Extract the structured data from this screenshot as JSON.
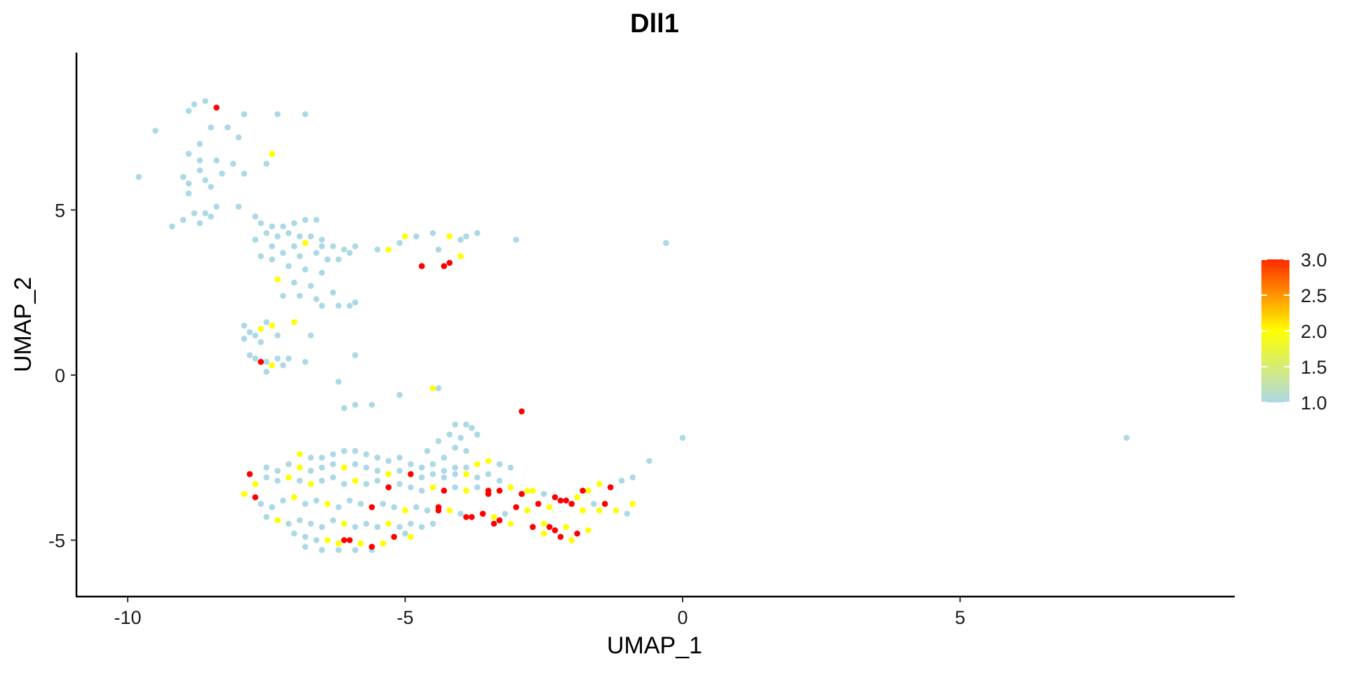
{
  "chart_data": {
    "type": "scatter",
    "title": "Dll1",
    "xlabel": "UMAP_1",
    "ylabel": "UMAP_2",
    "xlim": [
      -11,
      10
    ],
    "ylim": [
      -6.7,
      9.5
    ],
    "x_ticks": [
      -10,
      -5,
      0,
      5
    ],
    "y_ticks": [
      -5,
      0,
      5
    ],
    "x_tick_labels": [
      "-10",
      "-5",
      "0",
      "5"
    ],
    "y_tick_labels": [
      "-5",
      "0",
      "5"
    ],
    "grid": false,
    "legend": {
      "type": "colorbar",
      "placement": "right",
      "min": 1.0,
      "max": 3.0,
      "labels": [
        "3.0",
        "2.5",
        "2.0",
        "1.5",
        "1.0"
      ],
      "colors": [
        "#add8e6",
        "#ffff00",
        "#ff0000"
      ]
    },
    "colors": {
      "low": "#add8e6",
      "mid": "#ffff00",
      "high": "#ff0000"
    },
    "points": [
      [
        -8.6,
        8.3,
        1
      ],
      [
        -8.8,
        8.2,
        1
      ],
      [
        -8.9,
        8.0,
        1
      ],
      [
        -8.4,
        8.1,
        3
      ],
      [
        -7.3,
        7.9,
        1
      ],
      [
        -6.8,
        7.9,
        1
      ],
      [
        -7.9,
        7.9,
        1
      ],
      [
        -9.5,
        7.4,
        1
      ],
      [
        -8.5,
        7.5,
        1
      ],
      [
        -8.2,
        7.5,
        1
      ],
      [
        -8.0,
        7.2,
        1
      ],
      [
        -8.7,
        7.0,
        1
      ],
      [
        -8.9,
        6.7,
        1
      ],
      [
        -8.7,
        6.5,
        1
      ],
      [
        -8.4,
        6.5,
        1
      ],
      [
        -8.1,
        6.4,
        1
      ],
      [
        -7.9,
        6.1,
        1
      ],
      [
        -8.3,
        6.1,
        1
      ],
      [
        -8.7,
        6.2,
        1
      ],
      [
        -9.0,
        6.0,
        1
      ],
      [
        -9.8,
        6.0,
        1
      ],
      [
        -8.6,
        5.9,
        1
      ],
      [
        -8.9,
        5.8,
        1
      ],
      [
        -7.4,
        6.7,
        2
      ],
      [
        -7.5,
        6.4,
        1
      ],
      [
        -8.5,
        5.7,
        1
      ],
      [
        -8.9,
        5.5,
        1
      ],
      [
        -8.4,
        5.1,
        1
      ],
      [
        -8.0,
        5.1,
        1
      ],
      [
        -8.8,
        4.9,
        1
      ],
      [
        -9.0,
        4.7,
        1
      ],
      [
        -8.6,
        4.9,
        1
      ],
      [
        -9.2,
        4.5,
        1
      ],
      [
        -8.7,
        4.6,
        1
      ],
      [
        -8.5,
        4.8,
        1
      ],
      [
        -7.7,
        4.8,
        1
      ],
      [
        -7.6,
        4.6,
        1
      ],
      [
        -7.4,
        4.5,
        1
      ],
      [
        -7.2,
        4.5,
        1
      ],
      [
        -7.0,
        4.6,
        1
      ],
      [
        -6.8,
        4.7,
        1
      ],
      [
        -6.6,
        4.7,
        1
      ],
      [
        -7.5,
        4.3,
        1
      ],
      [
        -7.3,
        4.2,
        1
      ],
      [
        -7.1,
        4.3,
        1
      ],
      [
        -6.9,
        4.2,
        1
      ],
      [
        -6.7,
        4.2,
        1
      ],
      [
        -6.5,
        4.1,
        1
      ],
      [
        -7.7,
        4.1,
        1
      ],
      [
        -7.4,
        3.9,
        1
      ],
      [
        -7.0,
        3.9,
        1
      ],
      [
        -6.8,
        4.0,
        2
      ],
      [
        -6.5,
        3.9,
        1
      ],
      [
        -6.3,
        3.9,
        1
      ],
      [
        -6.1,
        3.8,
        1
      ],
      [
        -7.2,
        3.7,
        1
      ],
      [
        -6.9,
        3.6,
        1
      ],
      [
        -6.6,
        3.7,
        1
      ],
      [
        -6.4,
        3.5,
        1
      ],
      [
        -6.0,
        3.7,
        1
      ],
      [
        -7.6,
        3.6,
        1
      ],
      [
        -7.4,
        3.5,
        1
      ],
      [
        -6.2,
        3.5,
        1
      ],
      [
        -5.9,
        3.9,
        1
      ],
      [
        -7.1,
        3.3,
        1
      ],
      [
        -6.8,
        3.2,
        1
      ],
      [
        -6.5,
        3.1,
        1
      ],
      [
        -7.3,
        2.9,
        2
      ],
      [
        -7.0,
        2.8,
        1
      ],
      [
        -6.7,
        2.7,
        1
      ],
      [
        -7.2,
        2.4,
        1
      ],
      [
        -6.9,
        2.4,
        1
      ],
      [
        -6.6,
        2.3,
        1
      ],
      [
        -6.3,
        2.5,
        1
      ],
      [
        -6.5,
        2.1,
        1
      ],
      [
        -6.2,
        2.1,
        1
      ],
      [
        -5.9,
        2.2,
        1
      ],
      [
        -6.0,
        2.1,
        1
      ],
      [
        -5.5,
        3.8,
        1
      ],
      [
        -5.3,
        3.8,
        2
      ],
      [
        -5.1,
        4.0,
        1
      ],
      [
        -5.0,
        4.2,
        2
      ],
      [
        -4.8,
        4.2,
        1
      ],
      [
        -4.5,
        4.3,
        1
      ],
      [
        -4.2,
        4.2,
        2
      ],
      [
        -4.0,
        4.1,
        1
      ],
      [
        -3.9,
        4.2,
        1
      ],
      [
        -4.4,
        3.8,
        1
      ],
      [
        -4.0,
        3.6,
        2
      ],
      [
        -4.7,
        3.3,
        3
      ],
      [
        -4.2,
        3.4,
        3
      ],
      [
        -4.3,
        3.3,
        3
      ],
      [
        -3.7,
        4.3,
        1
      ],
      [
        -3.0,
        4.1,
        1
      ],
      [
        -0.3,
        4.0,
        1
      ],
      [
        -7.9,
        1.5,
        1
      ],
      [
        -7.8,
        1.3,
        1
      ],
      [
        -7.7,
        1.2,
        1
      ],
      [
        -7.6,
        1.4,
        2
      ],
      [
        -7.5,
        1.6,
        1
      ],
      [
        -7.4,
        1.5,
        2
      ],
      [
        -7.9,
        1.1,
        1
      ],
      [
        -7.6,
        1.0,
        1
      ],
      [
        -7.3,
        1.2,
        1
      ],
      [
        -7.0,
        1.6,
        2
      ],
      [
        -6.7,
        1.2,
        1
      ],
      [
        -7.8,
        0.6,
        1
      ],
      [
        -7.7,
        0.5,
        1
      ],
      [
        -7.5,
        0.4,
        1
      ],
      [
        -7.3,
        0.5,
        1
      ],
      [
        -7.1,
        0.5,
        1
      ],
      [
        -7.6,
        0.4,
        3
      ],
      [
        -7.4,
        0.3,
        2
      ],
      [
        -7.2,
        0.3,
        1
      ],
      [
        -6.8,
        0.4,
        1
      ],
      [
        -7.5,
        0.1,
        1
      ],
      [
        -5.9,
        0.6,
        1
      ],
      [
        -6.2,
        -0.2,
        1
      ],
      [
        -6.1,
        -1.0,
        1
      ],
      [
        -5.9,
        -0.9,
        1
      ],
      [
        -5.6,
        -0.9,
        1
      ],
      [
        -5.1,
        -0.6,
        1
      ],
      [
        -4.5,
        -0.4,
        2
      ],
      [
        -4.4,
        -0.4,
        1
      ],
      [
        -2.9,
        -1.1,
        3
      ],
      [
        -4.1,
        -1.5,
        1
      ],
      [
        -3.9,
        -1.5,
        1
      ],
      [
        -3.8,
        -1.6,
        1
      ],
      [
        -4.2,
        -1.8,
        1
      ],
      [
        -4.0,
        -1.9,
        1
      ],
      [
        -3.7,
        -1.8,
        1
      ],
      [
        -4.4,
        -2.0,
        1
      ],
      [
        -4.1,
        -2.2,
        1
      ],
      [
        -3.9,
        -2.3,
        1
      ],
      [
        -4.6,
        -2.3,
        1
      ],
      [
        -4.3,
        -2.5,
        1
      ],
      [
        -6.9,
        -2.4,
        2
      ],
      [
        -6.7,
        -2.5,
        1
      ],
      [
        -6.5,
        -2.5,
        1
      ],
      [
        -6.3,
        -2.4,
        1
      ],
      [
        -6.1,
        -2.3,
        1
      ],
      [
        -5.9,
        -2.3,
        1
      ],
      [
        -5.7,
        -2.4,
        1
      ],
      [
        -5.5,
        -2.5,
        1
      ],
      [
        -5.3,
        -2.6,
        1
      ],
      [
        -5.1,
        -2.5,
        1
      ],
      [
        -4.9,
        -2.7,
        1
      ],
      [
        -4.7,
        -2.8,
        1
      ],
      [
        -4.5,
        -2.7,
        1
      ],
      [
        -4.3,
        -2.9,
        1
      ],
      [
        -4.1,
        -2.8,
        1
      ],
      [
        -3.9,
        -2.8,
        1
      ],
      [
        -3.7,
        -2.7,
        2
      ],
      [
        -3.5,
        -2.6,
        2
      ],
      [
        -3.3,
        -2.7,
        1
      ],
      [
        -3.1,
        -2.8,
        1
      ],
      [
        -7.1,
        -2.7,
        1
      ],
      [
        -7.3,
        -2.9,
        1
      ],
      [
        -7.5,
        -2.8,
        1
      ],
      [
        -6.9,
        -2.8,
        2
      ],
      [
        -6.7,
        -2.9,
        1
      ],
      [
        -6.5,
        -2.8,
        1
      ],
      [
        -6.3,
        -2.7,
        1
      ],
      [
        -6.1,
        -2.8,
        2
      ],
      [
        -5.9,
        -2.7,
        1
      ],
      [
        -5.7,
        -2.8,
        1
      ],
      [
        -5.5,
        -2.9,
        1
      ],
      [
        -5.3,
        -3.0,
        2
      ],
      [
        -5.1,
        -2.9,
        1
      ],
      [
        -4.9,
        -3.0,
        3
      ],
      [
        -4.7,
        -3.1,
        1
      ],
      [
        -4.5,
        -3.0,
        1
      ],
      [
        -4.3,
        -3.1,
        1
      ],
      [
        -4.1,
        -3.0,
        1
      ],
      [
        -3.9,
        -3.0,
        2
      ],
      [
        -3.7,
        -3.1,
        1
      ],
      [
        -3.5,
        -3.0,
        1
      ],
      [
        -3.3,
        -3.2,
        1
      ],
      [
        -7.8,
        -3.0,
        3
      ],
      [
        -7.7,
        -3.3,
        2
      ],
      [
        -7.5,
        -3.1,
        1
      ],
      [
        -7.3,
        -3.2,
        1
      ],
      [
        -7.1,
        -3.1,
        2
      ],
      [
        -6.9,
        -3.2,
        1
      ],
      [
        -6.7,
        -3.3,
        2
      ],
      [
        -6.5,
        -3.2,
        1
      ],
      [
        -6.3,
        -3.1,
        1
      ],
      [
        -6.1,
        -3.3,
        1
      ],
      [
        -5.9,
        -3.2,
        2
      ],
      [
        -5.7,
        -3.3,
        1
      ],
      [
        -5.5,
        -3.2,
        1
      ],
      [
        -5.3,
        -3.4,
        3
      ],
      [
        -5.1,
        -3.3,
        1
      ],
      [
        -4.9,
        -3.4,
        1
      ],
      [
        -4.7,
        -3.5,
        1
      ],
      [
        -4.5,
        -3.4,
        2
      ],
      [
        -4.3,
        -3.5,
        3
      ],
      [
        -4.1,
        -3.4,
        1
      ],
      [
        -3.9,
        -3.5,
        2
      ],
      [
        -3.7,
        -3.4,
        1
      ],
      [
        -3.5,
        -3.6,
        3
      ],
      [
        -3.3,
        -3.5,
        3
      ],
      [
        -3.1,
        -3.4,
        2
      ],
      [
        -2.9,
        -3.6,
        3
      ],
      [
        -2.7,
        -3.5,
        2
      ],
      [
        -2.5,
        -3.6,
        1
      ],
      [
        -2.3,
        -3.7,
        3
      ],
      [
        -2.1,
        -3.8,
        3
      ],
      [
        -1.9,
        -3.7,
        2
      ],
      [
        -1.7,
        -3.5,
        2
      ],
      [
        -1.5,
        -3.3,
        2
      ],
      [
        -1.3,
        -3.4,
        3
      ],
      [
        -1.1,
        -3.2,
        1
      ],
      [
        -1.8,
        -3.5,
        3
      ],
      [
        -7.9,
        -3.6,
        2
      ],
      [
        -7.7,
        -3.7,
        3
      ],
      [
        -7.6,
        -3.9,
        1
      ],
      [
        -7.4,
        -4.0,
        1
      ],
      [
        -7.2,
        -3.8,
        1
      ],
      [
        -7.0,
        -3.7,
        2
      ],
      [
        -6.8,
        -3.9,
        1
      ],
      [
        -6.6,
        -3.8,
        1
      ],
      [
        -6.4,
        -3.9,
        2
      ],
      [
        -6.2,
        -4.0,
        1
      ],
      [
        -6.0,
        -3.8,
        1
      ],
      [
        -5.8,
        -3.9,
        1
      ],
      [
        -5.6,
        -4.0,
        3
      ],
      [
        -5.4,
        -3.9,
        1
      ],
      [
        -5.2,
        -4.0,
        1
      ],
      [
        -5.0,
        -4.1,
        2
      ],
      [
        -4.8,
        -4.0,
        1
      ],
      [
        -4.6,
        -4.1,
        1
      ],
      [
        -4.4,
        -4.0,
        3
      ],
      [
        -4.2,
        -4.1,
        2
      ],
      [
        -4.0,
        -4.2,
        1
      ],
      [
        -3.8,
        -4.3,
        3
      ],
      [
        -3.6,
        -4.2,
        3
      ],
      [
        -3.4,
        -4.3,
        2
      ],
      [
        -3.2,
        -4.2,
        1
      ],
      [
        -3.0,
        -4.0,
        3
      ],
      [
        -2.8,
        -4.1,
        2
      ],
      [
        -2.6,
        -3.9,
        3
      ],
      [
        -2.4,
        -4.0,
        2
      ],
      [
        -2.2,
        -3.8,
        3
      ],
      [
        -2.0,
        -3.9,
        3
      ],
      [
        -1.8,
        -4.1,
        2
      ],
      [
        -1.6,
        -3.9,
        1
      ],
      [
        -1.4,
        -3.9,
        3
      ],
      [
        -1.2,
        -4.1,
        2
      ],
      [
        -1.0,
        -4.2,
        1
      ],
      [
        -0.9,
        -3.9,
        2
      ],
      [
        -0.6,
        -2.6,
        1
      ],
      [
        0.0,
        -1.9,
        1
      ],
      [
        8.0,
        -1.9,
        1
      ],
      [
        -0.9,
        -3.1,
        1
      ],
      [
        -7.5,
        -4.3,
        1
      ],
      [
        -7.3,
        -4.4,
        2
      ],
      [
        -7.1,
        -4.5,
        1
      ],
      [
        -6.9,
        -4.4,
        1
      ],
      [
        -6.7,
        -4.5,
        1
      ],
      [
        -6.5,
        -4.6,
        1
      ],
      [
        -6.3,
        -4.4,
        1
      ],
      [
        -6.1,
        -4.5,
        2
      ],
      [
        -5.9,
        -4.6,
        1
      ],
      [
        -5.7,
        -4.5,
        1
      ],
      [
        -5.5,
        -4.6,
        1
      ],
      [
        -5.3,
        -4.5,
        2
      ],
      [
        -5.1,
        -4.6,
        1
      ],
      [
        -4.9,
        -4.5,
        1
      ],
      [
        -4.7,
        -4.6,
        1
      ],
      [
        -4.5,
        -4.5,
        1
      ],
      [
        -3.4,
        -4.5,
        3
      ],
      [
        -3.3,
        -4.4,
        3
      ],
      [
        -3.1,
        -4.5,
        2
      ],
      [
        -2.7,
        -4.6,
        3
      ],
      [
        -2.5,
        -4.5,
        2
      ],
      [
        -2.3,
        -4.7,
        3
      ],
      [
        -2.1,
        -4.6,
        2
      ],
      [
        -1.9,
        -4.8,
        3
      ],
      [
        -1.7,
        -4.7,
        2
      ],
      [
        -2.0,
        -5.0,
        2
      ],
      [
        -7.0,
        -4.8,
        1
      ],
      [
        -6.8,
        -4.9,
        1
      ],
      [
        -6.6,
        -5.0,
        1
      ],
      [
        -6.4,
        -5.0,
        2
      ],
      [
        -6.2,
        -5.1,
        2
      ],
      [
        -6.0,
        -5.0,
        3
      ],
      [
        -5.8,
        -5.1,
        2
      ],
      [
        -5.6,
        -5.2,
        3
      ],
      [
        -5.4,
        -5.1,
        2
      ],
      [
        -5.2,
        -4.9,
        3
      ],
      [
        -5.0,
        -4.8,
        1
      ],
      [
        -4.9,
        -4.9,
        2
      ],
      [
        -6.8,
        -5.2,
        1
      ],
      [
        -6.5,
        -5.3,
        1
      ],
      [
        -6.2,
        -5.3,
        1
      ],
      [
        -5.9,
        -5.3,
        1
      ],
      [
        -5.6,
        -5.3,
        1
      ],
      [
        -6.1,
        -5.0,
        3
      ],
      [
        -2.2,
        -4.9,
        3
      ],
      [
        -2.4,
        -4.6,
        3
      ],
      [
        -4.4,
        -4.1,
        3
      ],
      [
        -3.9,
        -4.3,
        3
      ],
      [
        -2.5,
        -4.8,
        2
      ],
      [
        -1.5,
        -4.1,
        2
      ],
      [
        -3.5,
        -3.5,
        3
      ],
      [
        -2.8,
        -3.5,
        2
      ]
    ]
  }
}
